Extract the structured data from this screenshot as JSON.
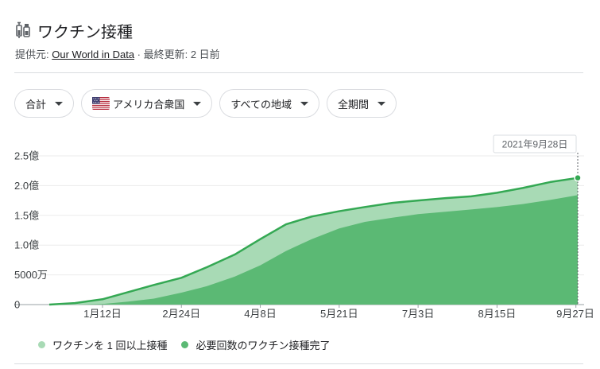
{
  "header": {
    "title": "ワクチン接種",
    "icon": "syringe-vial-icon",
    "source_prefix": "提供元:",
    "source_name": "Our World in Data",
    "updated": "· 最終更新: 2 日前"
  },
  "filters": [
    {
      "label": "合計",
      "icon": null
    },
    {
      "label": "アメリカ合衆国",
      "icon": "us-flag-icon"
    },
    {
      "label": "すべての地域",
      "icon": null
    },
    {
      "label": "全期間",
      "icon": null
    }
  ],
  "colors": {
    "at_least_one": "#a8dab5",
    "fully_vaccinated": "#5bb974",
    "top_line": "#34a853"
  },
  "chart_data": {
    "type": "area",
    "tooltip": "2021年9月28日",
    "x_ticks": [
      "1月12日",
      "2月24日",
      "4月8日",
      "5月21日",
      "7月3日",
      "8月15日",
      "9月27日"
    ],
    "y_ticks": [
      "0",
      "5000万",
      "1.0億",
      "1.5億",
      "2.0億",
      "2.5億"
    ],
    "ylim": [
      0,
      250000000
    ],
    "xlim": [
      "2020-12-14",
      "2021-09-28"
    ],
    "grid": true,
    "legend_position": "bottom-left",
    "x": [
      "2020-12-14",
      "2020-12-28",
      "2021-01-12",
      "2021-01-26",
      "2021-02-09",
      "2021-02-24",
      "2021-03-10",
      "2021-03-25",
      "2021-04-08",
      "2021-04-22",
      "2021-05-06",
      "2021-05-21",
      "2021-06-04",
      "2021-06-19",
      "2021-07-03",
      "2021-07-18",
      "2021-08-01",
      "2021-08-15",
      "2021-08-29",
      "2021-09-13",
      "2021-09-28"
    ],
    "series": [
      {
        "name": "ワクチンを 1 回以上接種",
        "values": [
          0,
          2500000,
          9000000,
          21000000,
          33000000,
          45000000,
          63000000,
          84000000,
          110000000,
          135000000,
          148000000,
          157000000,
          164000000,
          171000000,
          175000000,
          179000000,
          182000000,
          188000000,
          196000000,
          206000000,
          213000000
        ]
      },
      {
        "name": "必要回数のワクチン接種完了",
        "values": [
          0,
          0,
          1000000,
          5000000,
          10000000,
          20000000,
          31000000,
          47000000,
          66000000,
          90000000,
          110000000,
          128000000,
          139000000,
          146000000,
          152000000,
          156000000,
          160000000,
          164000000,
          169000000,
          176000000,
          184000000
        ]
      }
    ]
  }
}
